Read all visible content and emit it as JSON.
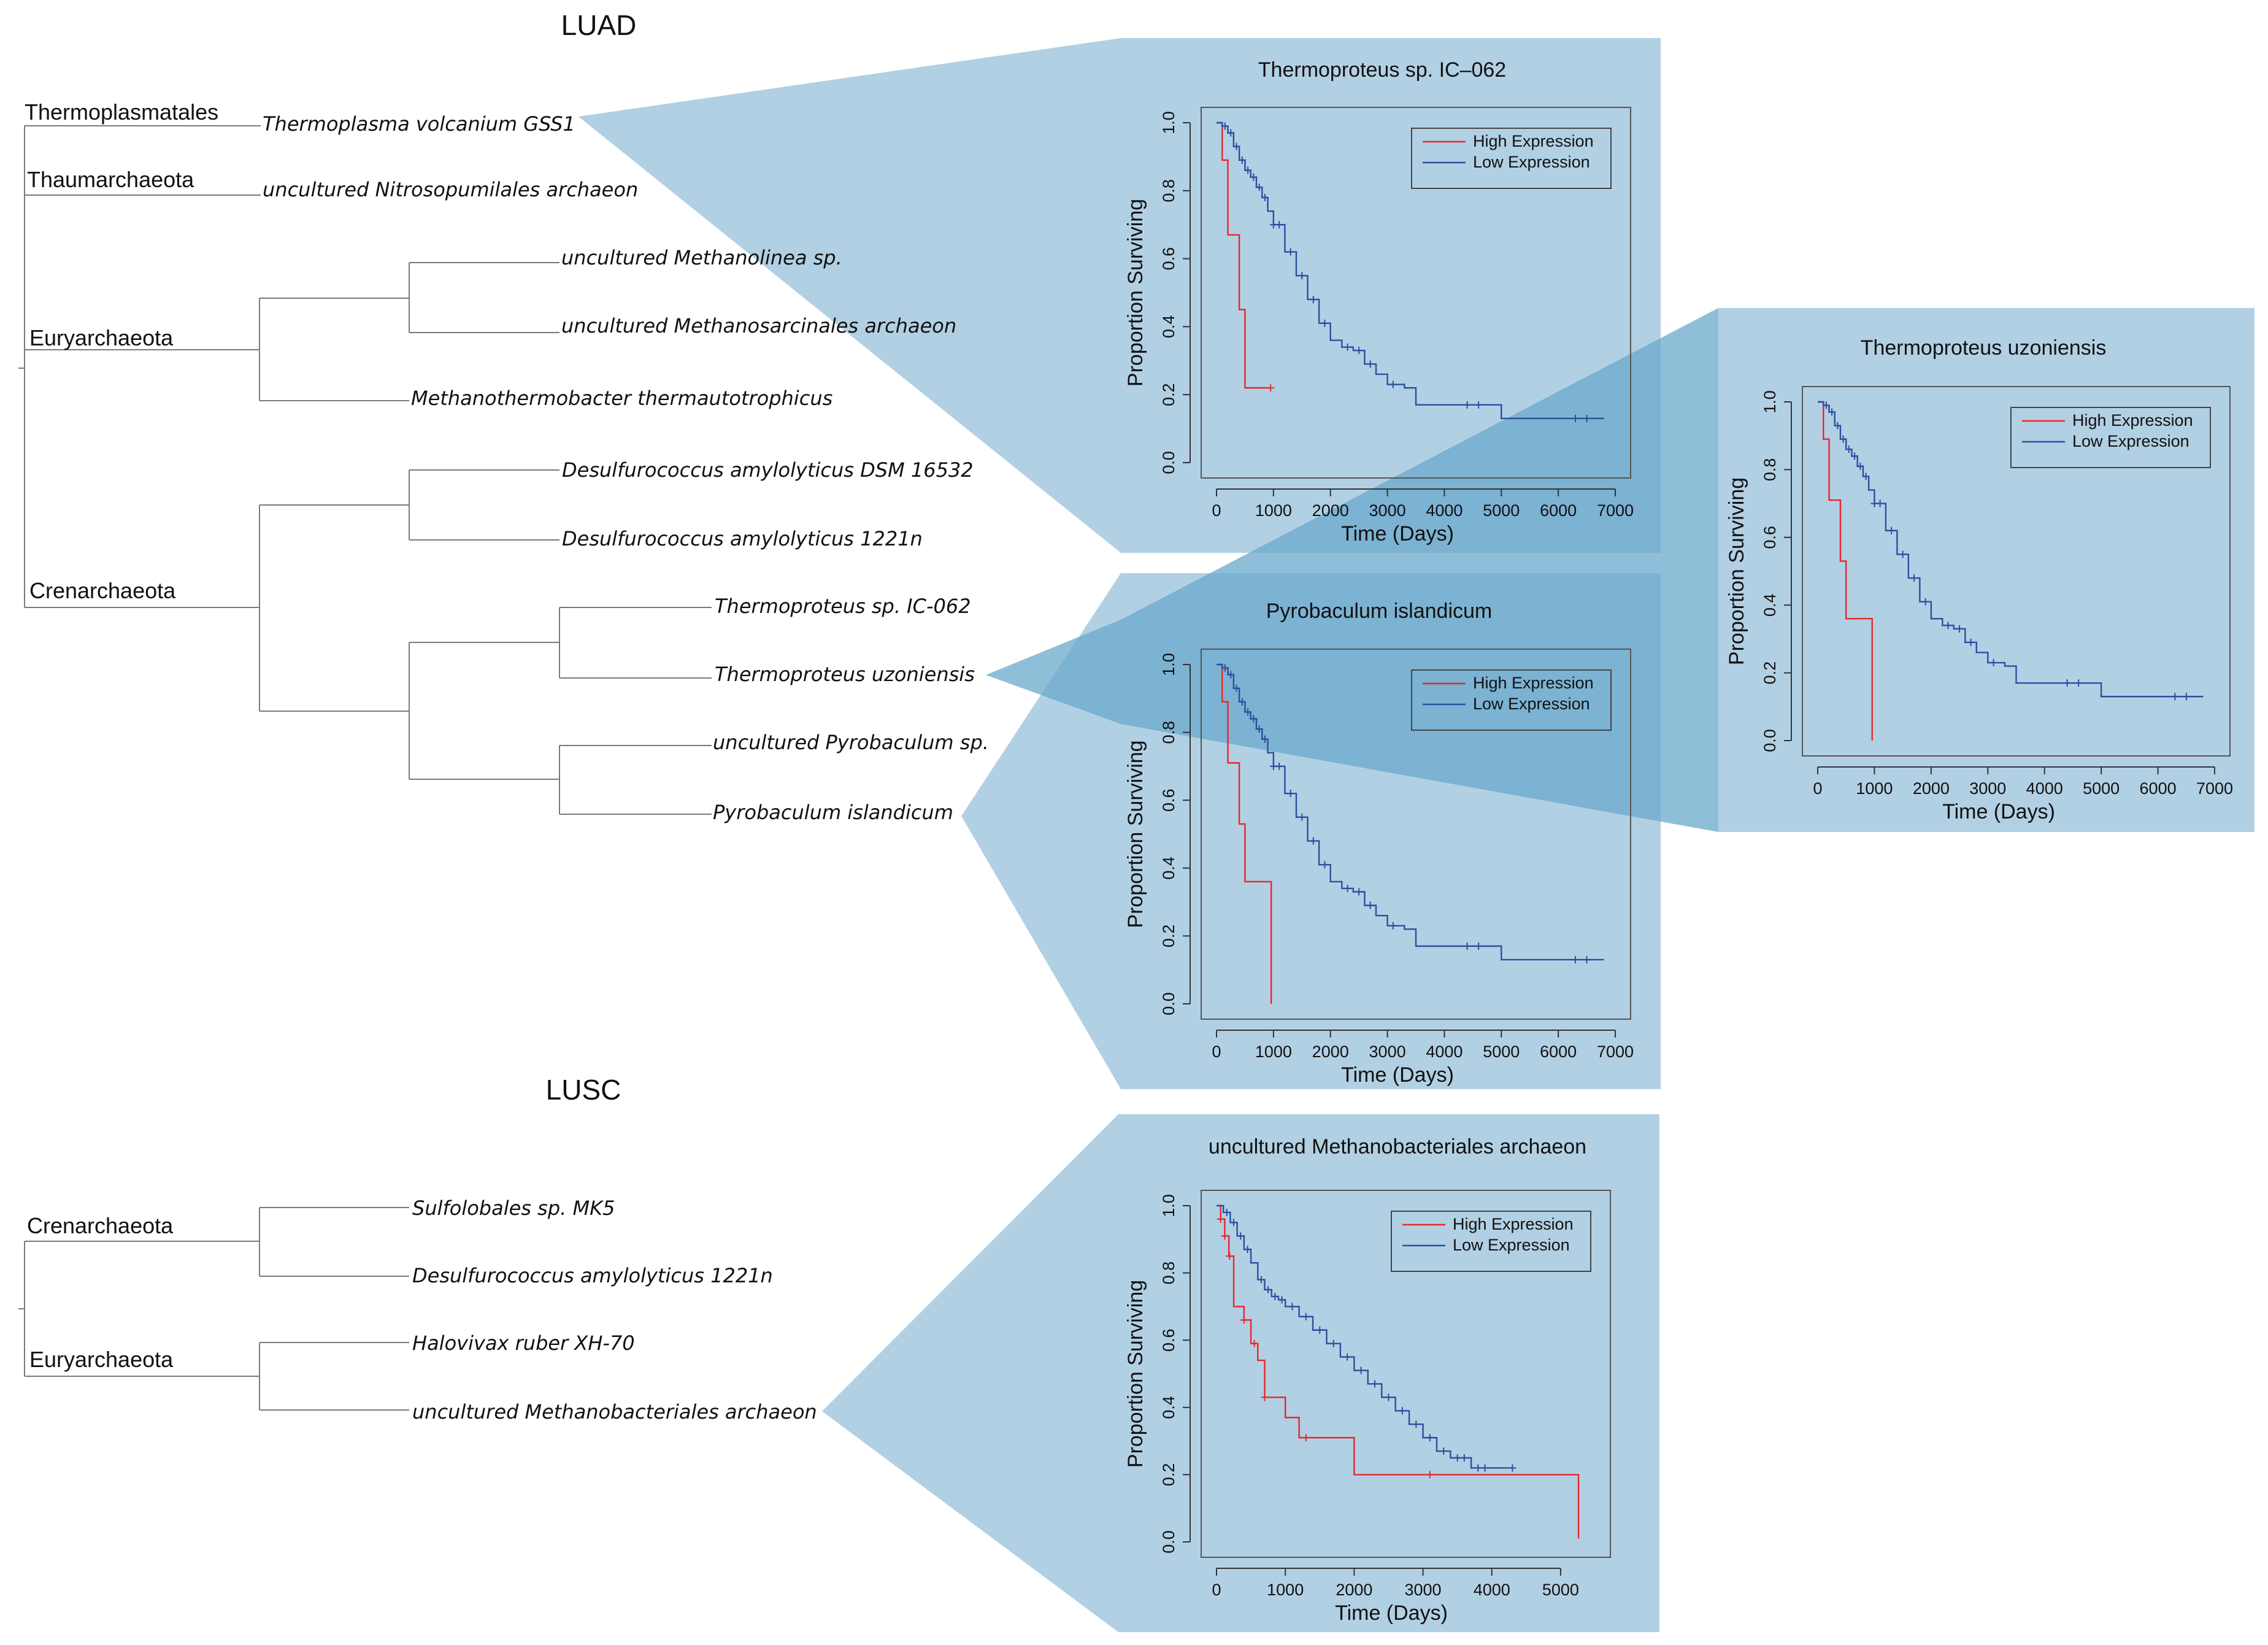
{
  "luad": {
    "heading": "LUAD",
    "phyla": [
      "Thermoplasmatales",
      "Thaumarchaeota",
      "Euryarchaeota",
      "Crenarchaeota"
    ],
    "taxa": [
      "Thermoplasma volcanium GSS1",
      "uncultured Nitrosopumilales archaeon",
      "uncultured Methanolinea sp.",
      "uncultured Methanosarcinales archaeon",
      "Methanothermobacter thermautotrophicus",
      "Desulfurococcus amylolyticus DSM 16532",
      "Desulfurococcus amylolyticus 1221n",
      "Thermoproteus sp. IC-062",
      "Thermoproteus uzoniensis",
      "uncultured Pyrobaculum sp.",
      "Pyrobaculum islandicum"
    ]
  },
  "lusc": {
    "heading": "LUSC",
    "phyla": [
      "Crenarchaeota",
      "Euryarchaeota"
    ],
    "taxa": [
      "Sulfolobales sp. MK5",
      "Desulfurococcus amylolyticus 1221n",
      "Halovivax ruber XH-70",
      "uncultured Methanobacteriales archaeon"
    ]
  },
  "colors": {
    "panel": "#aecde3",
    "panel_overlap": "#6aa8cc",
    "high": "#e8262b",
    "low": "#2b4f9e",
    "tree_line": "#7a7a7a"
  },
  "chart_data": [
    {
      "type": "line",
      "title": "Thermoproteus sp. IC–062",
      "xlabel": "Time (Days)",
      "ylabel": "Proportion Surviving",
      "xlim": [
        0,
        7000
      ],
      "ylim": [
        0,
        1
      ],
      "x_ticks": [
        "0",
        "1000",
        "2000",
        "3000",
        "4000",
        "5000",
        "6000",
        "7000"
      ],
      "y_ticks": [
        "0.0",
        "0.2",
        "0.4",
        "0.6",
        "0.8",
        "1.0"
      ],
      "legend": [
        "High Expression",
        "Low Expression"
      ],
      "legend_position": "top-right",
      "series": [
        {
          "name": "High Expression",
          "x": [
            0,
            100,
            200,
            300,
            400,
            500,
            950
          ],
          "y": [
            1.0,
            0.89,
            0.67,
            0.67,
            0.45,
            0.22,
            0.22
          ],
          "censor_x": [
            950
          ]
        },
        {
          "name": "Low Expression",
          "x": [
            0,
            100,
            200,
            300,
            400,
            500,
            600,
            700,
            800,
            900,
            1000,
            1200,
            1400,
            1600,
            1800,
            2000,
            2200,
            2400,
            2600,
            2800,
            3000,
            3300,
            3500,
            4000,
            4500,
            5000,
            5500,
            6000,
            6500,
            6800
          ],
          "y": [
            1.0,
            0.99,
            0.97,
            0.93,
            0.89,
            0.86,
            0.84,
            0.81,
            0.78,
            0.74,
            0.7,
            0.62,
            0.55,
            0.48,
            0.41,
            0.36,
            0.34,
            0.33,
            0.29,
            0.26,
            0.23,
            0.22,
            0.17,
            0.17,
            0.17,
            0.13,
            0.13,
            0.13,
            0.13,
            0.13
          ],
          "censor_x": [
            150,
            250,
            350,
            450,
            550,
            650,
            750,
            850,
            1000,
            1100,
            1300,
            1500,
            1700,
            1900,
            2300,
            2500,
            2700,
            3100,
            4400,
            4600,
            6300,
            6500
          ]
        }
      ]
    },
    {
      "type": "line",
      "title": "Thermoproteus uzoniensis",
      "xlabel": "Time (Days)",
      "ylabel": "Proportion Surviving",
      "xlim": [
        0,
        7000
      ],
      "ylim": [
        0,
        1
      ],
      "x_ticks": [
        "0",
        "1000",
        "2000",
        "3000",
        "4000",
        "5000",
        "6000",
        "7000"
      ],
      "y_ticks": [
        "0.0",
        "0.2",
        "0.4",
        "0.6",
        "0.8",
        "1.0"
      ],
      "legend": [
        "High Expression",
        "Low Expression"
      ],
      "legend_position": "top-right",
      "series": [
        {
          "name": "High Expression",
          "x": [
            0,
            100,
            200,
            300,
            400,
            500,
            950,
            960
          ],
          "y": [
            1.0,
            0.89,
            0.71,
            0.71,
            0.53,
            0.36,
            0.36,
            0.0
          ],
          "censor_x": []
        },
        {
          "name": "Low Expression",
          "x": [
            0,
            100,
            200,
            300,
            400,
            500,
            600,
            700,
            800,
            900,
            1000,
            1200,
            1400,
            1600,
            1800,
            2000,
            2200,
            2400,
            2600,
            2800,
            3000,
            3300,
            3500,
            4000,
            4500,
            5000,
            5500,
            6000,
            6500,
            6800
          ],
          "y": [
            1.0,
            0.99,
            0.97,
            0.93,
            0.89,
            0.86,
            0.84,
            0.81,
            0.78,
            0.74,
            0.7,
            0.62,
            0.55,
            0.48,
            0.41,
            0.36,
            0.34,
            0.33,
            0.29,
            0.26,
            0.23,
            0.22,
            0.17,
            0.17,
            0.17,
            0.13,
            0.13,
            0.13,
            0.13,
            0.13
          ],
          "censor_x": [
            150,
            250,
            350,
            450,
            550,
            650,
            750,
            850,
            1000,
            1100,
            1300,
            1500,
            1700,
            1900,
            2300,
            2500,
            2700,
            3100,
            4400,
            4600,
            6300,
            6500
          ]
        }
      ]
    },
    {
      "type": "line",
      "title": "Pyrobaculum islandicum",
      "xlabel": "Time (Days)",
      "ylabel": "Proportion Surviving",
      "xlim": [
        0,
        7000
      ],
      "ylim": [
        0,
        1
      ],
      "x_ticks": [
        "0",
        "1000",
        "2000",
        "3000",
        "4000",
        "5000",
        "6000",
        "7000"
      ],
      "y_ticks": [
        "0.0",
        "0.2",
        "0.4",
        "0.6",
        "0.8",
        "1.0"
      ],
      "legend": [
        "High Expression",
        "Low Expression"
      ],
      "legend_position": "top-right",
      "series": [
        {
          "name": "High Expression",
          "x": [
            0,
            100,
            200,
            300,
            400,
            500,
            950,
            960
          ],
          "y": [
            1.0,
            0.89,
            0.71,
            0.71,
            0.53,
            0.36,
            0.36,
            0.0
          ],
          "censor_x": []
        },
        {
          "name": "Low Expression",
          "x": [
            0,
            100,
            200,
            300,
            400,
            500,
            600,
            700,
            800,
            900,
            1000,
            1200,
            1400,
            1600,
            1800,
            2000,
            2200,
            2400,
            2600,
            2800,
            3000,
            3300,
            3500,
            4000,
            4500,
            5000,
            5500,
            6000,
            6500,
            6800
          ],
          "y": [
            1.0,
            0.99,
            0.97,
            0.93,
            0.89,
            0.86,
            0.84,
            0.81,
            0.78,
            0.74,
            0.7,
            0.62,
            0.55,
            0.48,
            0.41,
            0.36,
            0.34,
            0.33,
            0.29,
            0.26,
            0.23,
            0.22,
            0.17,
            0.17,
            0.17,
            0.13,
            0.13,
            0.13,
            0.13,
            0.13
          ],
          "censor_x": [
            150,
            250,
            350,
            450,
            550,
            650,
            750,
            850,
            1000,
            1100,
            1300,
            1500,
            1700,
            1900,
            2300,
            2500,
            2700,
            3100,
            4400,
            4600,
            6300,
            6500
          ]
        }
      ]
    },
    {
      "type": "line",
      "title": "uncultured Methanobacteriales archaeon",
      "xlabel": "Time (Days)",
      "ylabel": "Proportion Surviving",
      "xlim": [
        0,
        5500
      ],
      "ylim": [
        0,
        1
      ],
      "x_ticks": [
        "0",
        "1000",
        "2000",
        "3000",
        "4000",
        "5000"
      ],
      "y_ticks": [
        "0.0",
        "0.2",
        "0.4",
        "0.6",
        "0.8",
        "1.0"
      ],
      "legend": [
        "High Expression",
        "Low Expression"
      ],
      "legend_position": "top-right",
      "series": [
        {
          "name": "High Expression",
          "x": [
            0,
            60,
            120,
            180,
            250,
            400,
            500,
            600,
            700,
            900,
            1000,
            1200,
            1900,
            2000,
            3000,
            4000,
            5000,
            5250,
            5260
          ],
          "y": [
            1.0,
            0.96,
            0.91,
            0.85,
            0.7,
            0.66,
            0.59,
            0.54,
            0.43,
            0.43,
            0.37,
            0.31,
            0.31,
            0.2,
            0.2,
            0.2,
            0.2,
            0.2,
            0.01
          ],
          "censor_x": [
            60,
            120,
            190,
            400,
            550,
            700,
            1300,
            3100
          ]
        },
        {
          "name": "Low Expression",
          "x": [
            0,
            100,
            200,
            300,
            400,
            500,
            600,
            700,
            800,
            900,
            1000,
            1200,
            1400,
            1600,
            1800,
            2000,
            2200,
            2400,
            2600,
            2800,
            3000,
            3200,
            3400,
            3700,
            4300
          ],
          "y": [
            1.0,
            0.98,
            0.95,
            0.91,
            0.87,
            0.83,
            0.78,
            0.75,
            0.73,
            0.72,
            0.7,
            0.67,
            0.63,
            0.59,
            0.55,
            0.51,
            0.47,
            0.43,
            0.39,
            0.35,
            0.31,
            0.27,
            0.25,
            0.22,
            0.22
          ],
          "censor_x": [
            150,
            250,
            350,
            450,
            650,
            750,
            850,
            950,
            1100,
            1300,
            1500,
            1700,
            1900,
            2100,
            2300,
            2500,
            2700,
            2900,
            3100,
            3300,
            3500,
            3600,
            3800,
            3900,
            4300
          ]
        }
      ]
    }
  ]
}
